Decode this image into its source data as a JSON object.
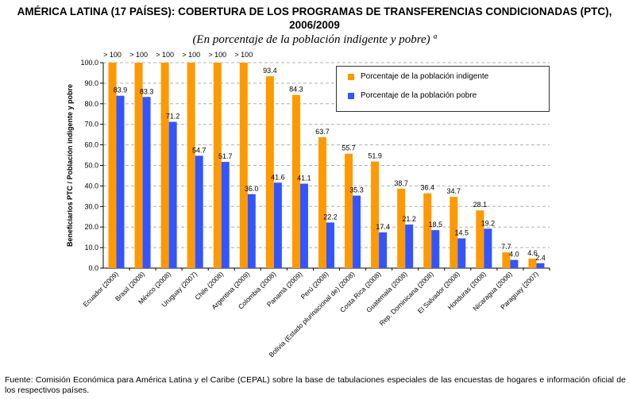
{
  "title": "AMÉRICA LATINA (17 PAÍSES): COBERTURA DE LOS PROGRAMAS DE TRANSFERENCIAS CONDICIONADAS (PTC), 2006/2009",
  "subtitle": "(En porcentaje de la población indigente y pobre) ª",
  "source": "Fuente: Comisión Económica para América Latina y el Caribe (CEPAL) sobre la base de tabulaciones especiales de las encuestas de hogares e información oficial de los respectivos países.",
  "chart_data": {
    "type": "bar",
    "ylabel": "Beneficiarios PTC / Población indigente y pobre",
    "ylim": [
      0,
      100
    ],
    "yticks": [
      "0.0",
      "10.0",
      "20.0",
      "30.0",
      "40.0",
      "50.0",
      "60.0",
      "70.0",
      "80.0",
      "90.0",
      "100.0"
    ],
    "grid": true,
    "legend_position": "top-right",
    "categories": [
      "Ecuador (2009)",
      "Brasil (2008)",
      "México (2008)",
      "Uruguay (2007)",
      "Chile (2008)",
      "Argentina (2009)",
      "Colombia (2008)",
      "Panamá (2009)",
      "Perú (2008)",
      "Bolivia (Estado plurinacional de) (2008)",
      "Costa Rica (2008)",
      "Guatemala (2008)",
      "Rep. Dominicana (2008)",
      "El Salvador (2008)",
      "Honduras (2008)",
      "Nicaragua (2006)",
      "Paraguay (2007)"
    ],
    "series": [
      {
        "name": "Porcentaje de la población indigente",
        "color": "#ff9900",
        "values": [
          100,
          100,
          100,
          100,
          100,
          100,
          93.4,
          84.3,
          63.7,
          55.7,
          51.9,
          38.7,
          36.4,
          34.7,
          28.1,
          7.7,
          4.6
        ],
        "labels": [
          "> 100",
          "> 100",
          "> 100",
          "> 100",
          "> 100",
          "> 100",
          "93.4",
          "84.3",
          "63.7",
          "55.7",
          "51.9",
          "38.7",
          "36.4",
          "34.7",
          "28.1",
          "7.7",
          "4.6"
        ]
      },
      {
        "name": "Porcentaje de la población pobre",
        "color": "#3355ff",
        "values": [
          83.9,
          83.3,
          71.2,
          54.7,
          51.7,
          36.0,
          41.6,
          41.1,
          22.2,
          35.3,
          17.4,
          21.2,
          18.5,
          14.5,
          19.2,
          4.0,
          2.4
        ],
        "labels": [
          "83.9",
          "83.3",
          "71.2",
          "54.7",
          "51.7",
          "36.0",
          "41.6",
          "41.1",
          "22.2",
          "35.3",
          "17.4",
          "21.2",
          "18.5",
          "14.5",
          "19.2",
          "4.0",
          "2.4"
        ]
      }
    ]
  }
}
